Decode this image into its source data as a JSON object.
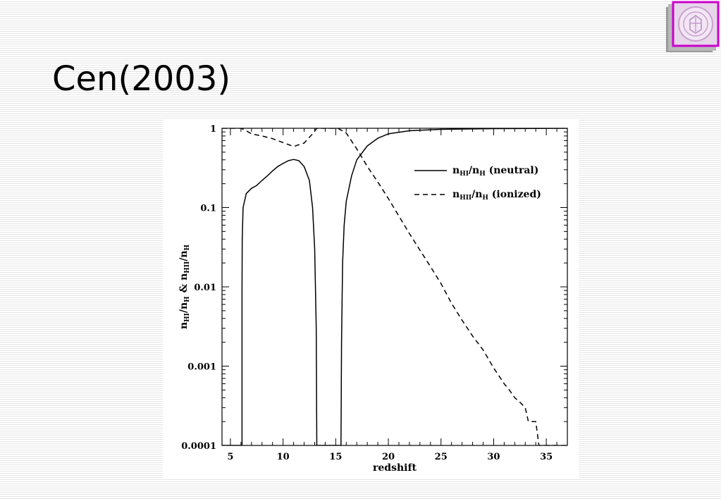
{
  "slide": {
    "title": "Cen(2003)"
  },
  "logo": {
    "icon": "university-seal-icon",
    "border_color": "#cc00cc"
  },
  "chart_data": {
    "type": "line",
    "xlabel": "redshift",
    "ylabel_html": "n<tspan font-size='9' dy='3'>HI</tspan><tspan dy='-3'>/n</tspan><tspan font-size='9' dy='3'>H</tspan><tspan dy='-3'> &amp; n</tspan><tspan font-size='9' dy='3'>HII</tspan><tspan dy='-3'>/n</tspan><tspan font-size='9' dy='3'>H</tspan>",
    "xlim": [
      4.2,
      37
    ],
    "ylim": [
      0.0001,
      1
    ],
    "y_scale": "log",
    "x_ticks": [
      5,
      10,
      15,
      20,
      25,
      30,
      35
    ],
    "x_tick_labels": [
      "5",
      "10",
      "15",
      "20",
      "25",
      "30",
      "35"
    ],
    "y_ticks": [
      0.0001,
      0.001,
      0.01,
      0.1,
      1
    ],
    "y_tick_labels": [
      "0.0001",
      "0.001",
      "0.01",
      "0.1",
      "1"
    ],
    "legend_position": "top-right",
    "series": [
      {
        "label_main": "n",
        "label_sub1": "HI",
        "label_sub2": "H",
        "label_suffix": "(neutral)",
        "style": "solid",
        "points": [
          [
            4.2,
            0.0001
          ],
          [
            6.1,
            0.0001
          ],
          [
            6.1,
            0.01
          ],
          [
            6.12,
            0.04
          ],
          [
            6.2,
            0.1
          ],
          [
            6.5,
            0.15
          ],
          [
            7.0,
            0.175
          ],
          [
            7.5,
            0.19
          ],
          [
            8.0,
            0.22
          ],
          [
            8.5,
            0.25
          ],
          [
            9.0,
            0.29
          ],
          [
            9.5,
            0.33
          ],
          [
            10.0,
            0.36
          ],
          [
            10.5,
            0.39
          ],
          [
            11.0,
            0.405
          ],
          [
            11.5,
            0.39
          ],
          [
            12.0,
            0.33
          ],
          [
            12.5,
            0.22
          ],
          [
            12.8,
            0.1
          ],
          [
            13.0,
            0.03
          ],
          [
            13.15,
            0.003
          ],
          [
            13.2,
            0.0001
          ],
          [
            15.5,
            0.0001
          ],
          [
            15.55,
            0.002
          ],
          [
            15.65,
            0.02
          ],
          [
            15.8,
            0.06
          ],
          [
            16.0,
            0.12
          ],
          [
            16.5,
            0.25
          ],
          [
            17.0,
            0.4
          ],
          [
            18.0,
            0.6
          ],
          [
            19.0,
            0.75
          ],
          [
            20.0,
            0.85
          ],
          [
            22.0,
            0.93
          ],
          [
            25.0,
            0.97
          ],
          [
            30.0,
            0.99
          ],
          [
            37.0,
            1.0
          ]
        ]
      },
      {
        "label_main": "n",
        "label_sub1": "HII",
        "label_sub2": "H",
        "label_suffix": "(ionized)",
        "style": "dashed",
        "points": [
          [
            4.2,
            1.0
          ],
          [
            6.0,
            1.0
          ],
          [
            6.5,
            0.93
          ],
          [
            7.0,
            0.85
          ],
          [
            8.0,
            0.8
          ],
          [
            9.0,
            0.74
          ],
          [
            10.0,
            0.66
          ],
          [
            11.0,
            0.59
          ],
          [
            12.0,
            0.65
          ],
          [
            12.8,
            0.85
          ],
          [
            13.2,
            1.0
          ],
          [
            15.2,
            1.0
          ],
          [
            16.0,
            0.87
          ],
          [
            17.0,
            0.55
          ],
          [
            18.0,
            0.33
          ],
          [
            19.0,
            0.21
          ],
          [
            20.0,
            0.13
          ],
          [
            21.0,
            0.078
          ],
          [
            22.0,
            0.047
          ],
          [
            23.0,
            0.029
          ],
          [
            24.0,
            0.018
          ],
          [
            25.0,
            0.011
          ],
          [
            26.0,
            0.0062
          ],
          [
            27.0,
            0.0038
          ],
          [
            28.0,
            0.0024
          ],
          [
            29.0,
            0.0016
          ],
          [
            30.0,
            0.00095
          ],
          [
            31.0,
            0.0006
          ],
          [
            31.5,
            0.0005
          ],
          [
            32.0,
            0.0004
          ],
          [
            32.5,
            0.00035
          ],
          [
            33.0,
            0.0003
          ],
          [
            33.3,
            0.0002
          ],
          [
            34.0,
            0.0002
          ],
          [
            34.3,
            0.0001
          ],
          [
            37.0,
            0.0001
          ]
        ]
      }
    ]
  }
}
